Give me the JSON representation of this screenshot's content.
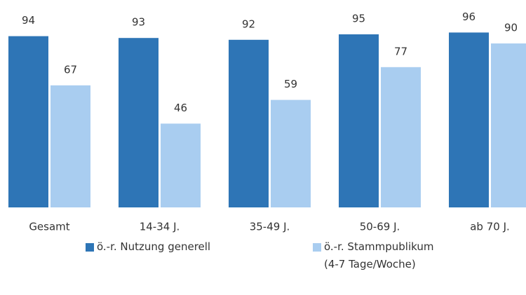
{
  "chart_data": {
    "type": "bar",
    "categories": [
      "Gesamt",
      "14-34 J.",
      "35-49 J.",
      "50-69 J.",
      "ab 70 J."
    ],
    "series": [
      {
        "name": "ö.-r. Nutzung generell",
        "color": "#2e75b6",
        "values": [
          94,
          93,
          92,
          95,
          96
        ]
      },
      {
        "name": "ö.-r. Stammpublikum (4-7 Tage/Woche)",
        "color": "#a9cdf0",
        "values": [
          67,
          46,
          59,
          77,
          90
        ]
      }
    ]
  }
}
